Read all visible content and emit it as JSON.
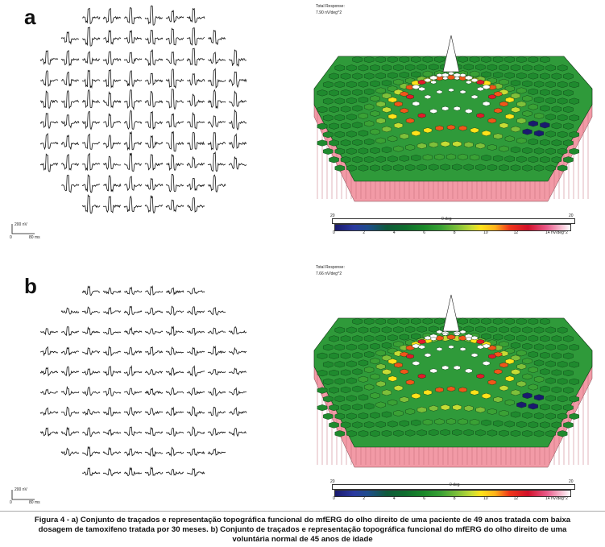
{
  "panels": [
    {
      "label": "a",
      "response_title": "Total Response:",
      "response_value": "7.90 nV/deg^2",
      "scale_amplitude": "200 nV",
      "scale_zero": "0",
      "scale_time": "80 ms",
      "axis_left": "20",
      "axis_center": "0 deg",
      "axis_right": "20",
      "colorbar_ticks": [
        "0",
        "2",
        "4",
        "6",
        "8",
        "10",
        "12",
        "14 nV/deg^2"
      ],
      "row_counts": [
        6,
        8,
        10,
        10,
        10,
        10,
        10,
        10,
        8,
        6
      ]
    },
    {
      "label": "b",
      "response_title": "Total Response:",
      "response_value": "7.66 nV/deg^2",
      "scale_amplitude": "200 nV",
      "scale_zero": "0",
      "scale_time": "80 ms",
      "axis_left": "20",
      "axis_center": "0 deg",
      "axis_right": "20",
      "colorbar_ticks": [
        "0",
        "2",
        "4",
        "6",
        "8",
        "10",
        "12",
        "14 nV/deg^2"
      ],
      "row_counts": [
        6,
        8,
        10,
        10,
        10,
        10,
        10,
        10,
        8,
        6
      ]
    }
  ],
  "caption": {
    "line1": "Figura 4 - a) Conjunto de traçados e representação topográfica funcional do mfERG  do olho direito de uma paciente de 49 anos tratada com baixa",
    "line2": "dosagem de tamoxifeno tratada por 30 meses. b) Conjunto de traçados e representação topográfica funcional do mfERG  do olho direito de uma",
    "line3": "voluntária normal de 45 anos de idade"
  },
  "colors": {
    "colorbar": [
      "#1a1a6e",
      "#0f5a3a",
      "#3aa135",
      "#ffe21a",
      "#d2102a",
      "#ffffff"
    ],
    "base_side": "#f29aa6",
    "surface_green": "#2f9a3a",
    "peak_red": "#e21a2a"
  }
}
